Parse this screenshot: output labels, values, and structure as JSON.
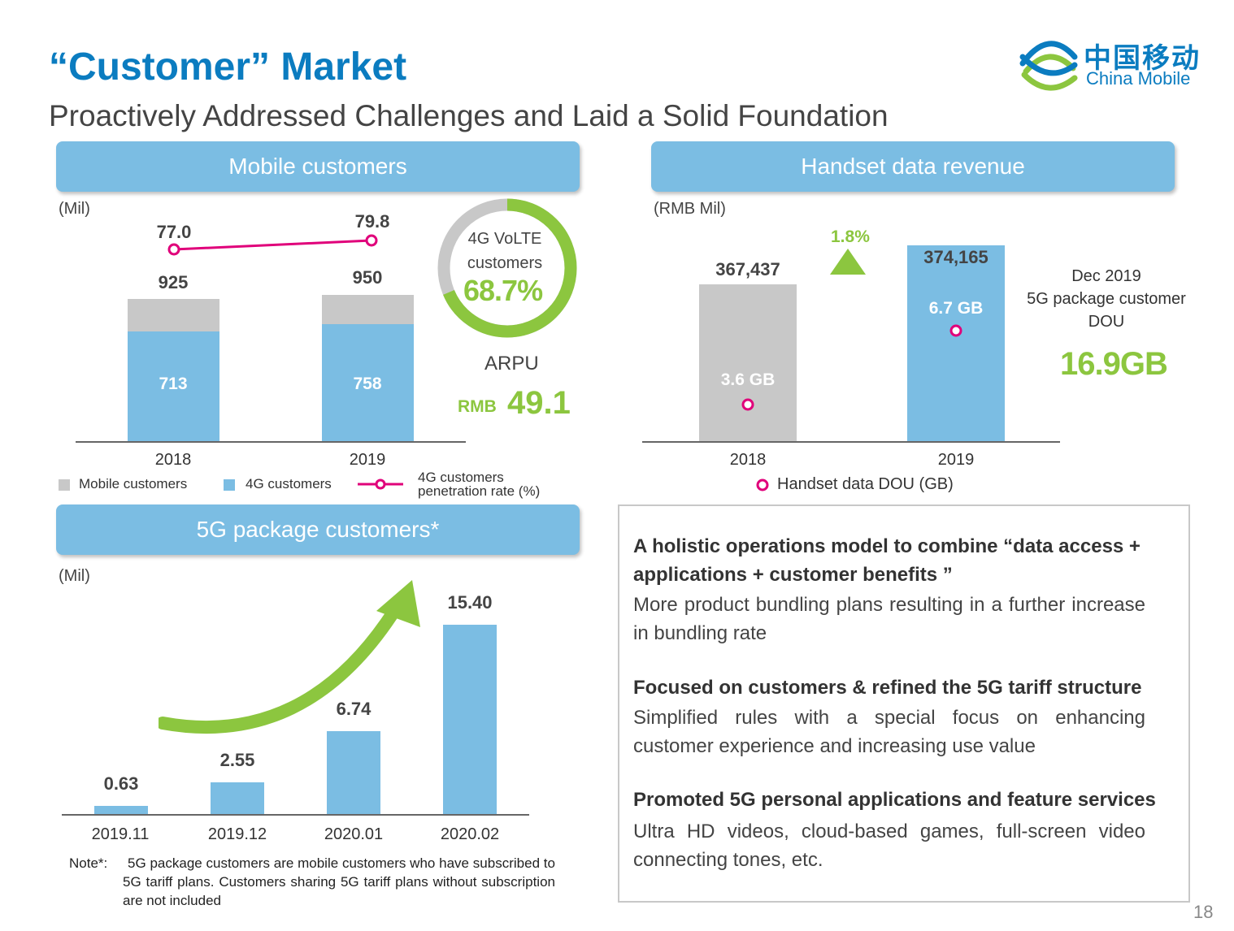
{
  "header": {
    "title": "“Customer” Market",
    "subtitle": "Proactively Addressed Challenges and Laid a Solid Foundation",
    "logo_cn": "中国移动",
    "logo_en": "China Mobile",
    "page_number": "18"
  },
  "colors": {
    "blue": "#7bbde3",
    "gray": "#c8c8c8",
    "green": "#8cc63f",
    "magenta": "#e0007a",
    "title_blue": "#0b7cc0"
  },
  "panels": {
    "mobile": {
      "banner": "Mobile customers",
      "unit": "(Mil)",
      "legend": {
        "mobile": "Mobile customers",
        "fourg": "4G customers",
        "pen_line1": "4G customers",
        "pen_line2": "penetration rate (%)"
      },
      "volte_line1": "4G VoLTE",
      "volte_line2": "customers",
      "volte_value": "68.7%",
      "arpu_label": "ARPU",
      "arpu_currency": "RMB",
      "arpu_value": "49.1"
    },
    "handset": {
      "banner": "Handset data revenue",
      "unit": "(RMB Mil)",
      "growth": "1.8%",
      "legend": "Handset data DOU (GB)",
      "note_line1": "Dec 2019",
      "note_line2": "5G package customer",
      "note_line3": "DOU",
      "note_value": "16.9GB"
    },
    "fiveg": {
      "banner": "5G package customers*",
      "unit": "(Mil)",
      "note_prefix": "Note*:",
      "note_text": "5G package customers are mobile customers who have subscribed to 5G tariff plans. Customers sharing 5G tariff plans without subscription are not included"
    }
  },
  "textbox": {
    "h1": "A holistic operations model to combine “data access + applications + customer benefits ”",
    "b1": "More product bundling plans resulting in a further increase in bundling rate",
    "h2": "Focused on customers & refined the 5G tariff structure",
    "b2": "Simplified rules with a special focus on enhancing customer experience and increasing use value",
    "h3": "Promoted 5G personal applications and feature services",
    "b3": "Ultra HD videos, cloud-based games, full-screen video connecting tones, etc."
  },
  "chart_data": [
    {
      "type": "bar",
      "title": "Mobile customers",
      "ylabel": "(Mil)",
      "categories": [
        "2018",
        "2019"
      ],
      "series": [
        {
          "name": "Mobile customers",
          "values": [
            925,
            950
          ],
          "labels": [
            "925",
            "950"
          ]
        },
        {
          "name": "4G customers",
          "values": [
            713,
            758
          ],
          "labels": [
            "713",
            "758"
          ]
        },
        {
          "name": "4G customers penetration rate (%)",
          "values": [
            77.0,
            79.8
          ],
          "labels": [
            "77.0",
            "79.8"
          ]
        }
      ]
    },
    {
      "type": "bar",
      "title": "Handset data revenue",
      "ylabel": "(RMB Mil)",
      "categories": [
        "2018",
        "2019"
      ],
      "series": [
        {
          "values": [
            367437,
            374165
          ],
          "labels": [
            "367,437",
            "374,165"
          ]
        },
        {
          "name": "Handset data DOU (GB)",
          "values": [
            3.6,
            6.7
          ],
          "labels": [
            "3.6 GB",
            "6.7 GB"
          ]
        }
      ]
    },
    {
      "type": "bar",
      "title": "5G package customers*",
      "ylabel": "(Mil)",
      "categories": [
        "2019.11",
        "2019.12",
        "2020.01",
        "2020.02"
      ],
      "series": [
        {
          "values": [
            0.63,
            2.55,
            6.74,
            15.4
          ],
          "labels": [
            "0.63",
            "2.55",
            "6.74",
            "15.40"
          ]
        }
      ]
    }
  ]
}
